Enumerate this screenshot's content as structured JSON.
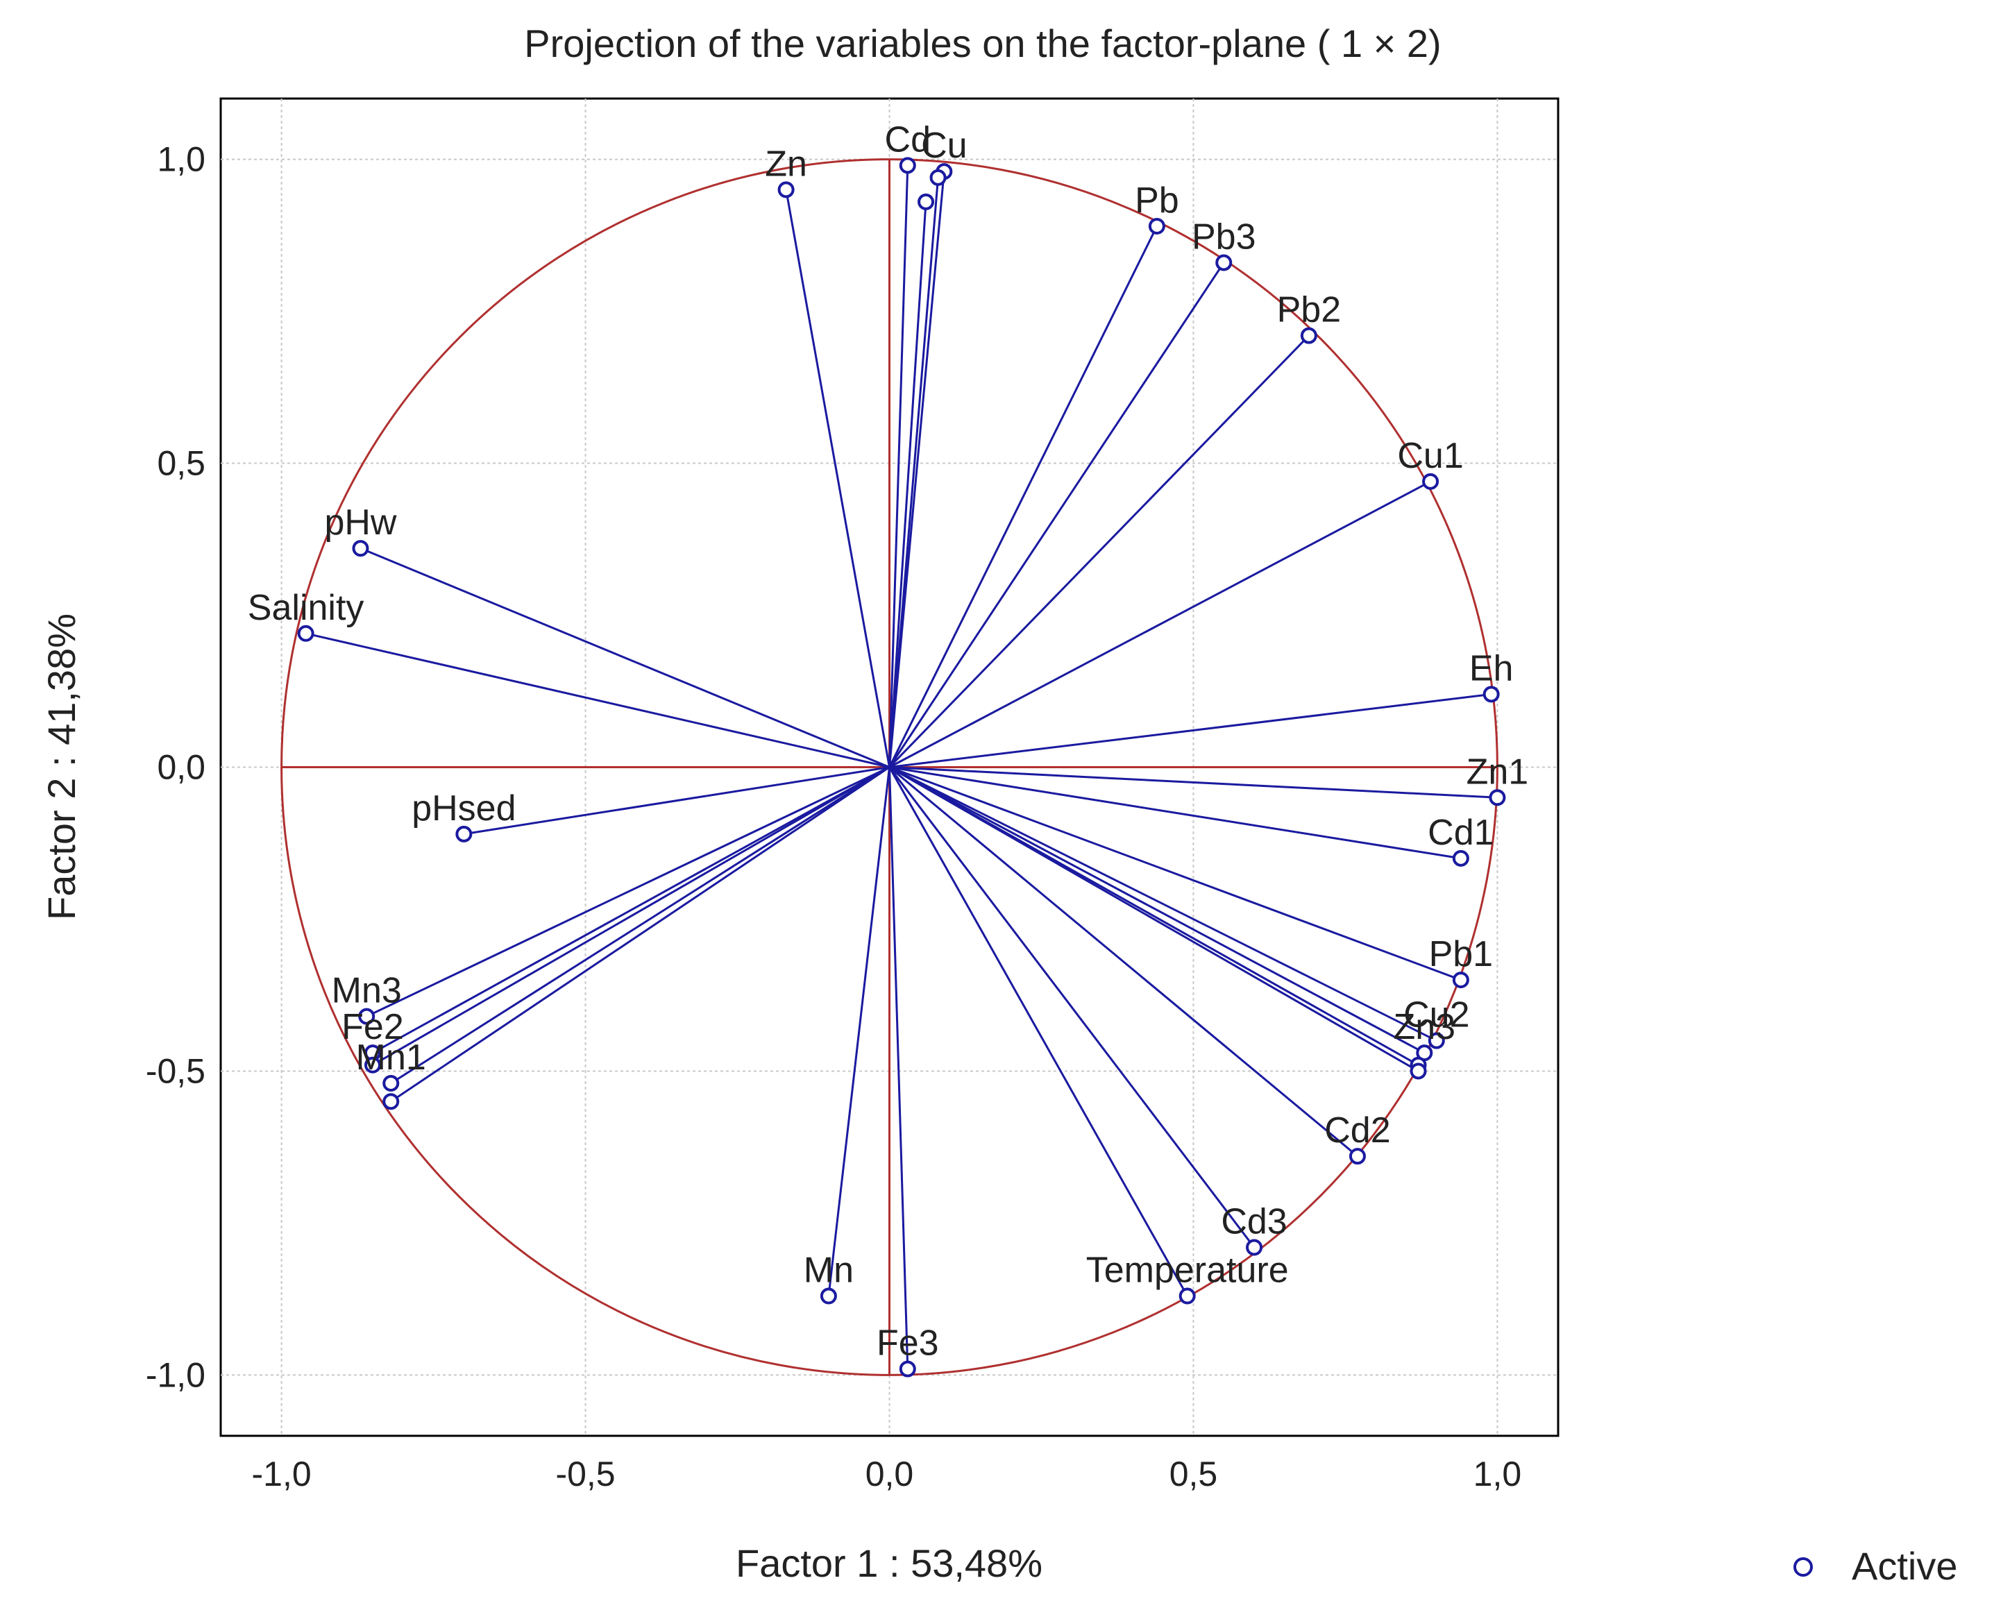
{
  "chart_data": {
    "type": "scatter",
    "title": "Projection of the variables on the factor-plane (  1 × 2)",
    "xlabel": "Factor 1 : 53,48%",
    "ylabel": "Factor 2 : 41,38%",
    "xlim": [
      -1.1,
      1.1
    ],
    "ylim": [
      -1.1,
      1.1
    ],
    "x_ticks": [
      -1.0,
      -0.5,
      0.0,
      0.5,
      1.0
    ],
    "y_ticks": [
      -1.0,
      -0.5,
      0.0,
      0.5,
      1.0
    ],
    "x_tick_labels": [
      "-1,0",
      "-0,5",
      "0,0",
      "0,5",
      "1,0"
    ],
    "y_tick_labels": [
      "-1,0",
      "-0,5",
      "0,0",
      "0,5",
      "1,0"
    ],
    "grid": true,
    "unit_circle": true,
    "legend": {
      "label": "Active",
      "position": "bottom-right"
    },
    "colors": {
      "vectors": "#1a1aa0",
      "points": "#1a1aa0",
      "circle": "#b03030",
      "axes": "#b03030",
      "grid": "#c8c8c8",
      "frame": "#000000"
    },
    "points": [
      {
        "name": "Zn",
        "x": -0.17,
        "y": 0.95
      },
      {
        "name": "Cd",
        "x": 0.03,
        "y": 0.99
      },
      {
        "name": "Cu",
        "x": 0.09,
        "y": 0.98
      },
      {
        "name": "",
        "x": 0.08,
        "y": 0.97
      },
      {
        "name": "",
        "x": 0.06,
        "y": 0.93
      },
      {
        "name": "Pb",
        "x": 0.44,
        "y": 0.89
      },
      {
        "name": "Pb3",
        "x": 0.55,
        "y": 0.83
      },
      {
        "name": "Pb2",
        "x": 0.69,
        "y": 0.71
      },
      {
        "name": "Cu1",
        "x": 0.89,
        "y": 0.47
      },
      {
        "name": "pHw",
        "x": -0.87,
        "y": 0.36
      },
      {
        "name": "Salinity",
        "x": -0.96,
        "y": 0.22
      },
      {
        "name": "Eh",
        "x": 0.99,
        "y": 0.12
      },
      {
        "name": "Zn1",
        "x": 1.0,
        "y": -0.05
      },
      {
        "name": "pHsed",
        "x": -0.7,
        "y": -0.11
      },
      {
        "name": "Cd1",
        "x": 0.94,
        "y": -0.15
      },
      {
        "name": "Pb1",
        "x": 0.94,
        "y": -0.35
      },
      {
        "name": "Cu2",
        "x": 0.9,
        "y": -0.45
      },
      {
        "name": "Zn3",
        "x": 0.88,
        "y": -0.47
      },
      {
        "name": "",
        "x": 0.87,
        "y": -0.49
      },
      {
        "name": "",
        "x": 0.87,
        "y": -0.5
      },
      {
        "name": "Mn3",
        "x": -0.86,
        "y": -0.41
      },
      {
        "name": "Fe2",
        "x": -0.85,
        "y": -0.47
      },
      {
        "name": "",
        "x": -0.85,
        "y": -0.49
      },
      {
        "name": "Mn1",
        "x": -0.82,
        "y": -0.52
      },
      {
        "name": "",
        "x": -0.82,
        "y": -0.55
      },
      {
        "name": "Cd2",
        "x": 0.77,
        "y": -0.64
      },
      {
        "name": "Cd3",
        "x": 0.6,
        "y": -0.79
      },
      {
        "name": "Temperature",
        "x": 0.49,
        "y": -0.87
      },
      {
        "name": "Mn",
        "x": -0.1,
        "y": -0.87
      },
      {
        "name": "Fe3",
        "x": 0.03,
        "y": -0.99
      }
    ]
  }
}
